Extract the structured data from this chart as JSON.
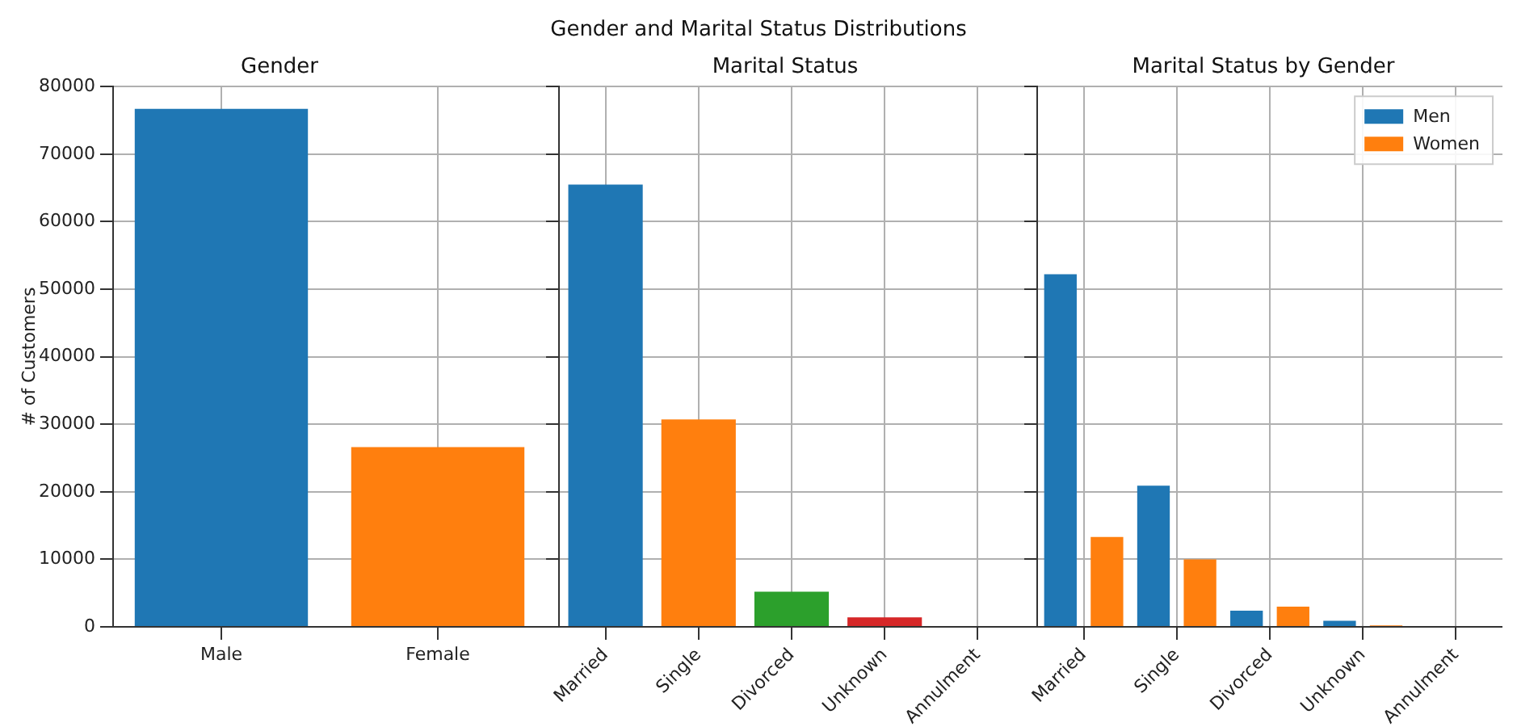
{
  "chart_data": [
    {
      "type": "bar",
      "title": "Gender",
      "ylabel": "# of Customers",
      "annotations": [
        "Gender and Marital Status Distributions"
      ],
      "categories": [
        "Male",
        "Female"
      ],
      "values": [
        76700,
        26600
      ],
      "colors": [
        "#1f77b4",
        "#ff7f0e"
      ],
      "ylim": [
        0,
        80000
      ],
      "yticks": [
        0,
        10000,
        20000,
        30000,
        40000,
        50000,
        60000,
        70000,
        80000
      ],
      "grid": true
    },
    {
      "type": "bar",
      "title": "Marital Status",
      "categories": [
        "Married",
        "Single",
        "Divorced",
        "Unknown",
        "Annulment"
      ],
      "values": [
        65500,
        30700,
        5200,
        1400,
        0
      ],
      "colors": [
        "#1f77b4",
        "#ff7f0e",
        "#2ca02c",
        "#d62728",
        "#9467bd"
      ],
      "ylim": [
        0,
        80000
      ],
      "yticks": [
        0,
        10000,
        20000,
        30000,
        40000,
        50000,
        60000,
        70000,
        80000
      ],
      "grid": true,
      "tick_labels": "x"
    },
    {
      "type": "bar",
      "title": "Marital Status by Gender",
      "categories": [
        "Married",
        "Single",
        "Divorced",
        "Unknown",
        "Annulment"
      ],
      "series": [
        {
          "name": "Men",
          "color": "#1f77b4",
          "values": [
            52200,
            20900,
            2400,
            900,
            0
          ]
        },
        {
          "name": "Women",
          "color": "#ff7f0e",
          "values": [
            13300,
            10000,
            3000,
            200,
            0
          ]
        }
      ],
      "ylim": [
        0,
        80000
      ],
      "yticks": [
        0,
        10000,
        20000,
        30000,
        40000,
        50000,
        60000,
        70000,
        80000
      ],
      "grid": true,
      "tick_labels": "x",
      "legend": "top right"
    }
  ]
}
